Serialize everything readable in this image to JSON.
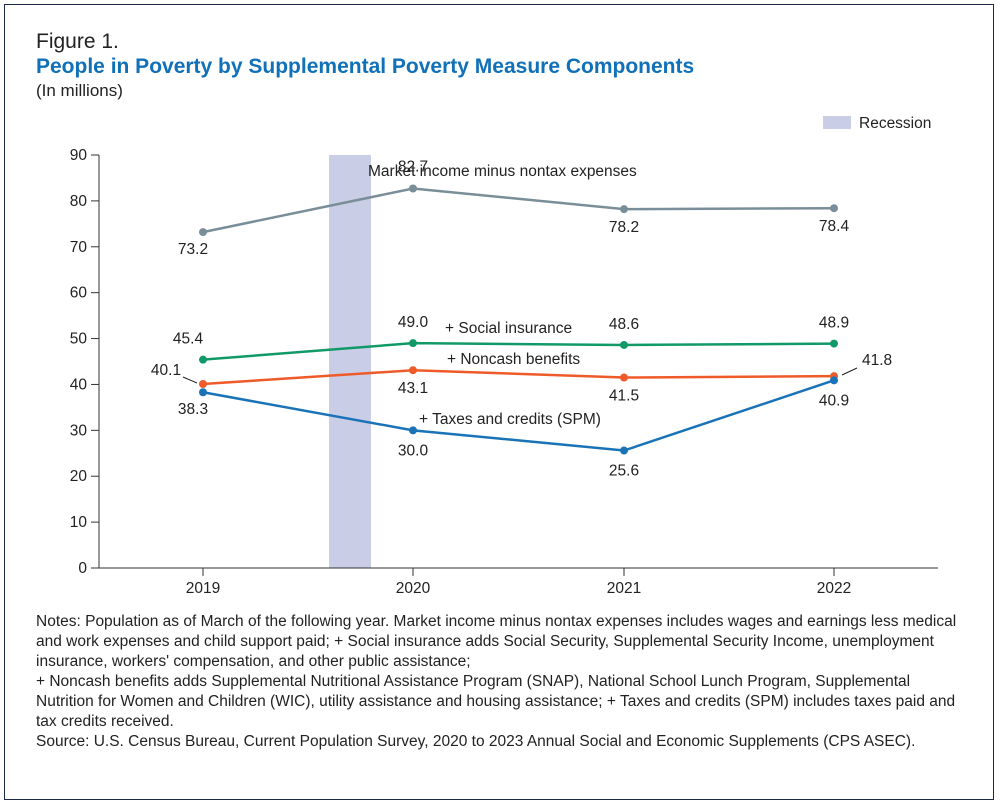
{
  "figure": {
    "label": "Figure 1.",
    "title": "People in Poverty by Supplemental Poverty Measure Components",
    "subtitle": "(In millions)"
  },
  "legend": {
    "recession_label": "Recession",
    "recession_color": "#c9cde6"
  },
  "chart_data": {
    "type": "line",
    "x": [
      "2019",
      "2020",
      "2021",
      "2022"
    ],
    "ylim": [
      0,
      90
    ],
    "yticks": [
      0,
      10,
      20,
      30,
      40,
      50,
      60,
      70,
      80,
      90
    ],
    "recession": {
      "from": 2019.6,
      "to": 2019.8
    },
    "series": [
      {
        "name": "Market income minus nontax expenses",
        "color": "#7a8e99",
        "values": [
          73.2,
          82.7,
          78.2,
          78.4
        ],
        "labels": [
          "73.2",
          "82.7",
          "78.2",
          "78.4"
        ]
      },
      {
        "name": "+ Social insurance",
        "color": "#119a67",
        "values": [
          45.4,
          49.0,
          48.6,
          48.9
        ],
        "labels": [
          "45.4",
          "49.0",
          "48.6",
          "48.9"
        ]
      },
      {
        "name": "+ Noncash benefits",
        "color": "#ef5a2a",
        "values": [
          40.1,
          43.1,
          41.5,
          41.8
        ],
        "labels": [
          "40.1",
          "43.1",
          "41.5",
          "41.8"
        ]
      },
      {
        "name": "+ Taxes and credits (SPM)",
        "color": "#1a73b7",
        "values": [
          38.3,
          30.0,
          25.6,
          40.9
        ],
        "labels": [
          "38.3",
          "30.0",
          "25.6",
          "40.9"
        ]
      }
    ]
  },
  "notes": {
    "text": "Notes: Population as of March of the following year. Market income minus nontax expenses includes wages and earnings less medical and work expenses and child support paid; + Social insurance adds Social Security, Supplemental Security Income, unemployment insurance, workers' compensation, and other public assistance;",
    "text2": " + Noncash benefits adds Supplemental Nutritional Assistance Program (SNAP), National School Lunch Program, Supplemental Nutrition for Women and Children (WIC), utility assistance and housing assistance;  + Taxes and credits (SPM) includes taxes paid and tax credits received.",
    "source": "Source: U.S. Census Bureau, Current Population Survey, 2020 to 2023 Annual Social and Economic Supplements (CPS ASEC)."
  }
}
